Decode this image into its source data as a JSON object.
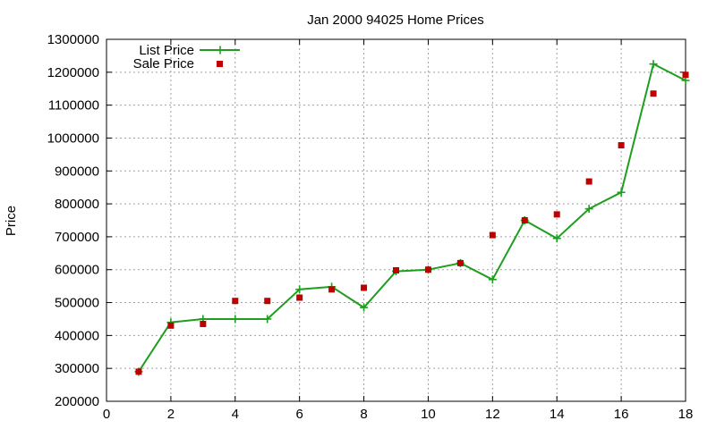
{
  "chart_data": {
    "type": "line",
    "title": "Jan 2000 94025 Home Prices",
    "xlabel": "",
    "ylabel": "Price",
    "xlim": [
      0,
      18
    ],
    "ylim": [
      200000,
      1300000
    ],
    "xticks": [
      0,
      2,
      4,
      6,
      8,
      10,
      12,
      14,
      16,
      18
    ],
    "yticks": [
      200000,
      300000,
      400000,
      500000,
      600000,
      700000,
      800000,
      900000,
      1000000,
      1100000,
      1200000,
      1300000
    ],
    "grid": true,
    "legend_position": "top-left",
    "series": [
      {
        "name": "List Price",
        "style": "line-with-plus-markers",
        "color": "#1e9e1e",
        "x": [
          1,
          2,
          3,
          4,
          5,
          6,
          7,
          8,
          9,
          10,
          11,
          12,
          13,
          14,
          15,
          16,
          17,
          18
        ],
        "y": [
          290000,
          440000,
          450000,
          450000,
          450000,
          540000,
          548000,
          485000,
          595000,
          600000,
          620000,
          570000,
          750000,
          695000,
          785000,
          835000,
          1225000,
          1175000
        ]
      },
      {
        "name": "Sale Price",
        "style": "square-points",
        "color": "#c00000",
        "x": [
          1,
          2,
          3,
          4,
          5,
          6,
          7,
          8,
          9,
          10,
          11,
          12,
          13,
          14,
          15,
          16,
          17,
          18
        ],
        "y": [
          290000,
          430000,
          435000,
          505000,
          505000,
          515000,
          540000,
          545000,
          598000,
          600000,
          620000,
          705000,
          750000,
          768000,
          868000,
          978000,
          1135000,
          1192000
        ]
      }
    ]
  }
}
